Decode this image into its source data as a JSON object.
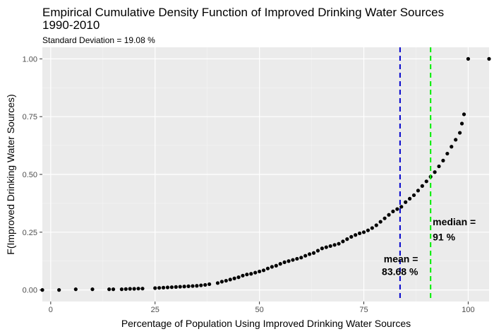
{
  "chart_data": {
    "type": "scatter",
    "title_line1": "Empirical Cumulative Density Function of Improved Drinking Water Sources",
    "title_line2": "1990-2010",
    "subtitle": "Standard Deviation = 19.08 %",
    "xlabel": "Percentage of Population Using Improved Drinking Water Sources",
    "ylabel": "F(Improved Drinking Water Sources)",
    "xlim": [
      -2,
      105
    ],
    "ylim": [
      -0.05,
      1.05
    ],
    "x_ticks": [
      0,
      25,
      50,
      75,
      100
    ],
    "y_ticks": [
      0.0,
      0.25,
      0.5,
      0.75,
      1.0
    ],
    "x_tick_labels": [
      "0",
      "25",
      "50",
      "75",
      "100"
    ],
    "y_tick_labels": [
      "0.00",
      "0.25",
      "0.50",
      "0.75",
      "1.00"
    ],
    "grid": true,
    "background": "#ebebeb",
    "point_color": "#000000",
    "vlines": [
      {
        "x": 83.68,
        "color": "#0000cc",
        "style": "dashed",
        "label_line1": "mean =",
        "label_line2": "83.68 %",
        "label_x": 88,
        "label_y1": 0.12,
        "label_y2": 0.065,
        "anchor": "end"
      },
      {
        "x": 91,
        "color": "#00ee00",
        "style": "dashed",
        "label_line1": "median =",
        "label_line2": "91 %",
        "label_x": 91.5,
        "label_y1": 0.28,
        "label_y2": 0.215,
        "anchor": "start"
      }
    ],
    "points": [
      [
        -2,
        0.0
      ],
      [
        2,
        0.0
      ],
      [
        6,
        0.003
      ],
      [
        10,
        0.003
      ],
      [
        14,
        0.003
      ],
      [
        15,
        0.003
      ],
      [
        17,
        0.003
      ],
      [
        18,
        0.004
      ],
      [
        19,
        0.005
      ],
      [
        20,
        0.005
      ],
      [
        21,
        0.006
      ],
      [
        22,
        0.006
      ],
      [
        25,
        0.008
      ],
      [
        26,
        0.009
      ],
      [
        27,
        0.01
      ],
      [
        28,
        0.011
      ],
      [
        29,
        0.012
      ],
      [
        30,
        0.013
      ],
      [
        31,
        0.014
      ],
      [
        32,
        0.015
      ],
      [
        33,
        0.016
      ],
      [
        34,
        0.017
      ],
      [
        35,
        0.018
      ],
      [
        36,
        0.02
      ],
      [
        37,
        0.022
      ],
      [
        38,
        0.025
      ],
      [
        40,
        0.03
      ],
      [
        41,
        0.036
      ],
      [
        42,
        0.04
      ],
      [
        43,
        0.045
      ],
      [
        44,
        0.05
      ],
      [
        45,
        0.055
      ],
      [
        46,
        0.062
      ],
      [
        47,
        0.067
      ],
      [
        48,
        0.07
      ],
      [
        49,
        0.075
      ],
      [
        50,
        0.08
      ],
      [
        51,
        0.085
      ],
      [
        52,
        0.093
      ],
      [
        53,
        0.1
      ],
      [
        54,
        0.105
      ],
      [
        55,
        0.113
      ],
      [
        56,
        0.12
      ],
      [
        57,
        0.125
      ],
      [
        58,
        0.13
      ],
      [
        59,
        0.135
      ],
      [
        60,
        0.14
      ],
      [
        61,
        0.148
      ],
      [
        62,
        0.155
      ],
      [
        63,
        0.16
      ],
      [
        64,
        0.17
      ],
      [
        65,
        0.18
      ],
      [
        66,
        0.185
      ],
      [
        67,
        0.19
      ],
      [
        68,
        0.195
      ],
      [
        69,
        0.2
      ],
      [
        70,
        0.21
      ],
      [
        71,
        0.22
      ],
      [
        72,
        0.23
      ],
      [
        73,
        0.238
      ],
      [
        74,
        0.245
      ],
      [
        75,
        0.25
      ],
      [
        76,
        0.258
      ],
      [
        77,
        0.268
      ],
      [
        78,
        0.28
      ],
      [
        79,
        0.295
      ],
      [
        80,
        0.31
      ],
      [
        81,
        0.325
      ],
      [
        82,
        0.34
      ],
      [
        83,
        0.35
      ],
      [
        84,
        0.36
      ],
      [
        85,
        0.38
      ],
      [
        86,
        0.395
      ],
      [
        87,
        0.41
      ],
      [
        88,
        0.43
      ],
      [
        89,
        0.45
      ],
      [
        90,
        0.47
      ],
      [
        91,
        0.49
      ],
      [
        92,
        0.51
      ],
      [
        93,
        0.535
      ],
      [
        94,
        0.56
      ],
      [
        95,
        0.59
      ],
      [
        96,
        0.62
      ],
      [
        97,
        0.65
      ],
      [
        98,
        0.68
      ],
      [
        98.5,
        0.72
      ],
      [
        99,
        0.76
      ],
      [
        100,
        1.0
      ],
      [
        105,
        1.0
      ]
    ]
  }
}
